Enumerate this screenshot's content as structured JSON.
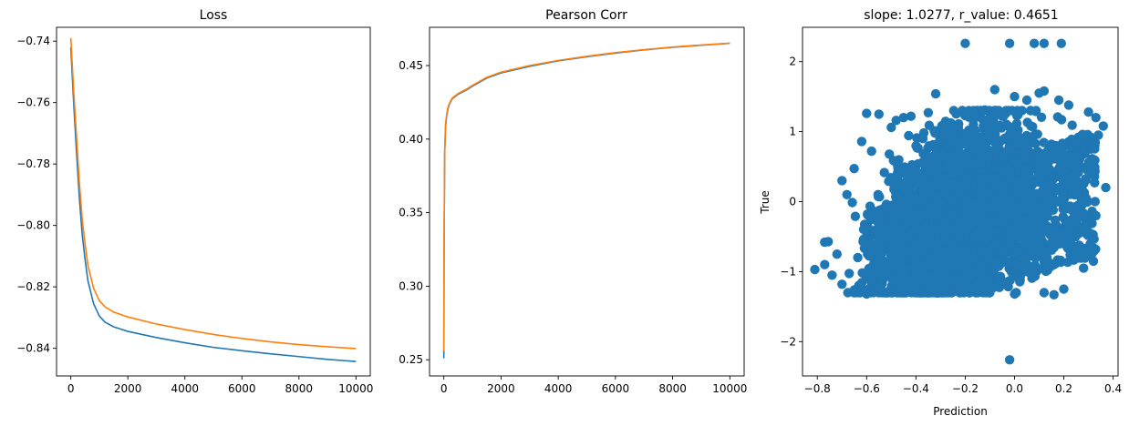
{
  "colors": {
    "series_blue": "#1f77b4",
    "series_orange": "#ff7f0e"
  },
  "chart_data": [
    {
      "type": "line",
      "title": "Loss",
      "xlabel": "",
      "ylabel": "",
      "xlim": [
        -500,
        10500
      ],
      "ylim": [
        -0.849,
        -0.7355
      ],
      "xticks": [
        0,
        2000,
        4000,
        6000,
        8000,
        10000
      ],
      "yticks": [
        -0.74,
        -0.76,
        -0.78,
        -0.8,
        -0.82,
        -0.84
      ],
      "xtick_labels": [
        "0",
        "2000",
        "4000",
        "6000",
        "8000",
        "10000"
      ],
      "ytick_labels": [
        "−0.74",
        "−0.76",
        "−0.78",
        "−0.80",
        "−0.82",
        "−0.84"
      ],
      "grid": false,
      "series": [
        {
          "color": "#1f77b4",
          "x": [
            0,
            100,
            200,
            300,
            400,
            500,
            600,
            800,
            1000,
            1200,
            1500,
            2000,
            3000,
            4000,
            5000,
            6000,
            7000,
            8000,
            9000,
            10000
          ],
          "y": [
            -0.742,
            -0.76,
            -0.776,
            -0.791,
            -0.803,
            -0.811,
            -0.818,
            -0.8255,
            -0.8295,
            -0.8315,
            -0.833,
            -0.8345,
            -0.8365,
            -0.8382,
            -0.8397,
            -0.8408,
            -0.8418,
            -0.8427,
            -0.8436,
            -0.8443
          ]
        },
        {
          "color": "#ff7f0e",
          "x": [
            0,
            100,
            200,
            300,
            400,
            500,
            600,
            800,
            1000,
            1200,
            1500,
            2000,
            3000,
            4000,
            5000,
            6000,
            7000,
            8000,
            9000,
            10000
          ],
          "y": [
            -0.739,
            -0.756,
            -0.771,
            -0.786,
            -0.798,
            -0.806,
            -0.813,
            -0.8205,
            -0.8245,
            -0.8265,
            -0.8282,
            -0.8298,
            -0.8321,
            -0.8339,
            -0.8355,
            -0.8368,
            -0.8379,
            -0.8388,
            -0.8395,
            -0.8401
          ]
        }
      ]
    },
    {
      "type": "line",
      "title": "Pearson Corr",
      "xlabel": "",
      "ylabel": "",
      "xlim": [
        -500,
        10500
      ],
      "ylim": [
        0.239,
        0.476
      ],
      "xticks": [
        0,
        2000,
        4000,
        6000,
        8000,
        10000
      ],
      "yticks": [
        0.25,
        0.3,
        0.35,
        0.4,
        0.45
      ],
      "xtick_labels": [
        "0",
        "2000",
        "4000",
        "6000",
        "8000",
        "10000"
      ],
      "ytick_labels": [
        "0.25",
        "0.30",
        "0.35",
        "0.40",
        "0.45"
      ],
      "grid": false,
      "series": [
        {
          "color": "#1f77b4",
          "x": [
            0,
            10,
            30,
            60,
            100,
            150,
            200,
            300,
            500,
            800,
            1000,
            1500,
            2000,
            3000,
            4000,
            5000,
            6000,
            7000,
            8000,
            9000,
            10000
          ],
          "y": [
            0.251,
            0.33,
            0.39,
            0.408,
            0.416,
            0.421,
            0.424,
            0.4275,
            0.4305,
            0.4335,
            0.436,
            0.4415,
            0.445,
            0.4495,
            0.4532,
            0.456,
            0.4585,
            0.4606,
            0.4624,
            0.4638,
            0.4651
          ]
        },
        {
          "color": "#ff7f0e",
          "x": [
            0,
            10,
            30,
            60,
            100,
            150,
            200,
            300,
            500,
            800,
            1000,
            1500,
            2000,
            3000,
            4000,
            5000,
            6000,
            7000,
            8000,
            9000,
            10000
          ],
          "y": [
            0.256,
            0.335,
            0.392,
            0.41,
            0.417,
            0.422,
            0.4245,
            0.428,
            0.431,
            0.434,
            0.4365,
            0.442,
            0.4455,
            0.45,
            0.4535,
            0.4563,
            0.4588,
            0.4608,
            0.4626,
            0.464,
            0.4652
          ]
        }
      ]
    },
    {
      "type": "scatter",
      "title": "slope: 1.0277, r_value: 0.4651",
      "xlabel": "Prediction",
      "ylabel": "True",
      "xlim": [
        -0.86,
        0.42
      ],
      "ylim": [
        -2.49,
        2.49
      ],
      "xticks": [
        -0.8,
        -0.6,
        -0.4,
        -0.2,
        0.0,
        0.2,
        0.4
      ],
      "yticks": [
        2,
        1,
        0,
        -1,
        -2
      ],
      "xtick_labels": [
        "−0.8",
        "−0.6",
        "−0.4",
        "−0.2",
        "0.0",
        "0.2",
        "0.4"
      ],
      "ytick_labels": [
        "2",
        "1",
        "0",
        "−1",
        "−2"
      ],
      "grid": false,
      "series": [
        {
          "color": "#1f77b4",
          "points": [
            [
              -0.2,
              2.26
            ],
            [
              -0.02,
              2.26
            ],
            [
              0.08,
              2.26
            ],
            [
              0.12,
              2.26
            ],
            [
              0.19,
              2.26
            ],
            [
              -0.02,
              -2.26
            ],
            [
              -0.81,
              -0.97
            ],
            [
              -0.77,
              -0.58
            ],
            [
              -0.72,
              -0.75
            ],
            [
              -0.7,
              0.3
            ],
            [
              -0.68,
              0.1
            ],
            [
              -0.62,
              0.86
            ],
            [
              -0.6,
              1.26
            ],
            [
              -0.58,
              0.72
            ],
            [
              -0.55,
              1.25
            ],
            [
              -0.5,
              1.06
            ],
            [
              -0.48,
              1.16
            ],
            [
              -0.45,
              1.2
            ],
            [
              -0.42,
              1.22
            ],
            [
              -0.35,
              1.27
            ],
            [
              -0.32,
              1.54
            ],
            [
              -0.12,
              1.31
            ],
            [
              -0.08,
              1.6
            ],
            [
              -0.05,
              1.22
            ],
            [
              0.0,
              1.5
            ],
            [
              0.05,
              1.45
            ],
            [
              0.1,
              1.55
            ],
            [
              0.12,
              1.58
            ],
            [
              0.18,
              1.45
            ],
            [
              0.22,
              1.38
            ],
            [
              0.3,
              1.28
            ],
            [
              0.33,
              1.2
            ],
            [
              0.36,
              1.08
            ],
            [
              0.34,
              0.95
            ],
            [
              0.37,
              0.2
            ],
            [
              0.33,
              -0.2
            ],
            [
              0.32,
              -0.85
            ],
            [
              0.28,
              -0.95
            ],
            [
              0.2,
              -1.25
            ],
            [
              0.16,
              -1.33
            ],
            [
              0.12,
              -1.3
            ],
            [
              0.0,
              -1.32
            ],
            [
              -0.1,
              -1.3
            ],
            [
              -0.2,
              -1.28
            ],
            [
              -0.3,
              -1.27
            ],
            [
              -0.4,
              -1.28
            ],
            [
              -0.5,
              -1.3
            ],
            [
              -0.6,
              -1.32
            ],
            [
              -0.65,
              -1.26
            ],
            [
              -0.7,
              -1.18
            ],
            [
              -0.74,
              -1.05
            ],
            [
              -0.77,
              -0.9
            ]
          ],
          "dense_cloud": {
            "x_center": -0.22,
            "x_spread": 0.28,
            "y_center": -0.1,
            "y_spread": 0.55,
            "correlation": 0.4651
          }
        }
      ]
    }
  ]
}
